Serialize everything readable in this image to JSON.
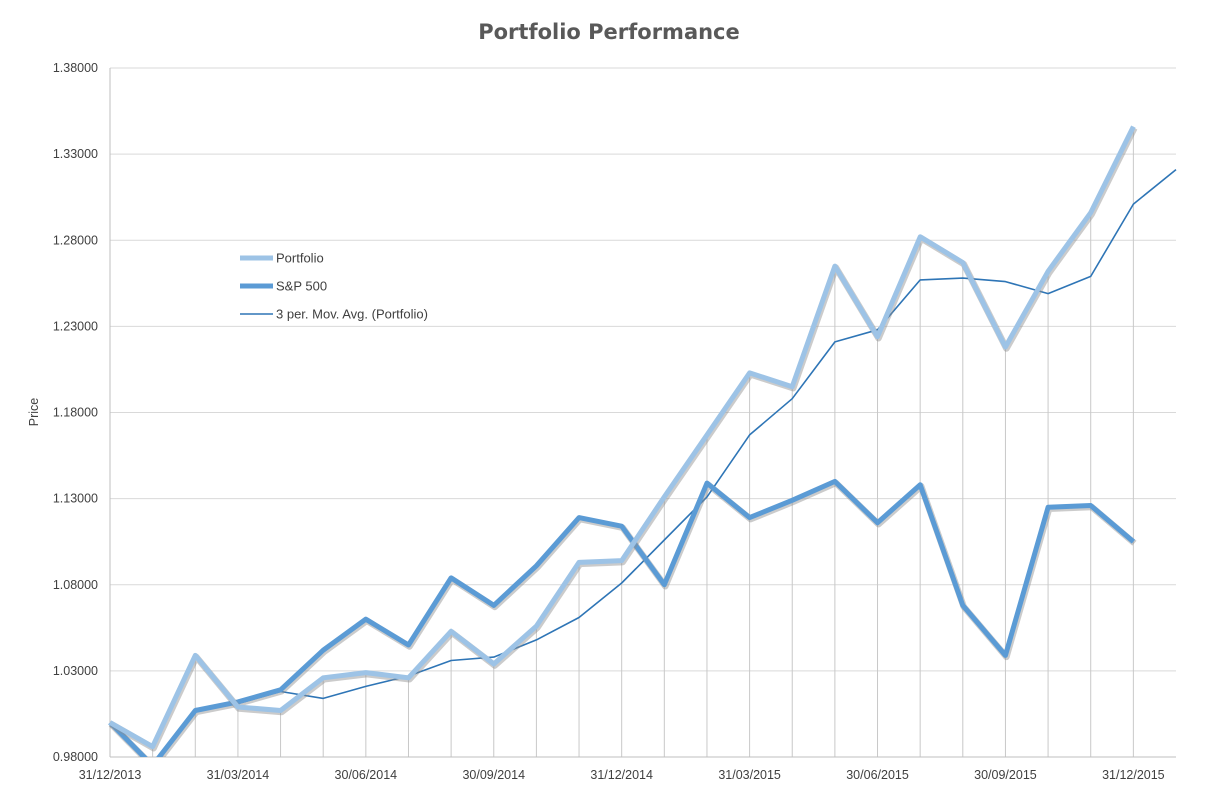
{
  "chart_data": {
    "type": "line",
    "title": "Portfolio Performance",
    "xlabel": "",
    "ylabel": "Price",
    "ylim": [
      0.98,
      1.38
    ],
    "y_ticks": [
      "0.98000",
      "1.03000",
      "1.08000",
      "1.13000",
      "1.18000",
      "1.23000",
      "1.28000",
      "1.33000",
      "1.38000"
    ],
    "x_tick_labels": [
      "31/12/2013",
      "31/03/2014",
      "30/06/2014",
      "30/09/2014",
      "31/12/2014",
      "31/03/2015",
      "30/06/2015",
      "30/09/2015",
      "31/12/2015"
    ],
    "x_tick_positions": [
      0,
      3,
      6,
      9,
      12,
      15,
      18,
      21,
      24
    ],
    "categories": [
      "31/12/2013",
      "31/01/2014",
      "28/02/2014",
      "31/03/2014",
      "30/04/2014",
      "31/05/2014",
      "30/06/2014",
      "31/07/2014",
      "31/08/2014",
      "30/09/2014",
      "31/10/2014",
      "30/11/2014",
      "31/12/2014",
      "31/01/2015",
      "28/02/2015",
      "31/03/2015",
      "30/04/2015",
      "31/05/2015",
      "30/06/2015",
      "31/07/2015",
      "31/08/2015",
      "30/09/2015",
      "31/10/2015",
      "30/11/2015",
      "31/12/2015",
      "31/01/2016"
    ],
    "grid": "vertical",
    "legend_position": "left-middle",
    "series": [
      {
        "name": "Portfolio",
        "color": "#9dc3e6",
        "style": "thick",
        "values": [
          1.0,
          0.986,
          1.039,
          1.009,
          1.007,
          1.026,
          1.029,
          1.026,
          1.053,
          1.034,
          1.056,
          1.093,
          1.094,
          1.131,
          1.167,
          1.203,
          1.195,
          1.265,
          1.224,
          1.282,
          1.267,
          1.218,
          1.262,
          1.296,
          1.346,
          null
        ]
      },
      {
        "name": "S&P 500",
        "color": "#5b9bd5",
        "style": "thick",
        "values": [
          1.0,
          0.975,
          1.007,
          1.012,
          1.019,
          1.042,
          1.06,
          1.045,
          1.084,
          1.068,
          1.091,
          1.119,
          1.114,
          1.08,
          1.139,
          1.119,
          1.129,
          1.14,
          1.116,
          1.138,
          1.068,
          1.039,
          1.125,
          1.126,
          1.105,
          null
        ]
      },
      {
        "name": "3 per. Mov. Avg. (Portfolio)",
        "color": "#2e75b6",
        "style": "thin",
        "values": [
          null,
          null,
          1.008,
          1.011,
          1.018,
          1.014,
          1.021,
          1.027,
          1.036,
          1.038,
          1.048,
          1.061,
          1.081,
          1.106,
          1.131,
          1.167,
          1.188,
          1.221,
          1.228,
          1.257,
          1.258,
          1.256,
          1.249,
          1.259,
          1.301,
          1.321
        ]
      }
    ]
  }
}
